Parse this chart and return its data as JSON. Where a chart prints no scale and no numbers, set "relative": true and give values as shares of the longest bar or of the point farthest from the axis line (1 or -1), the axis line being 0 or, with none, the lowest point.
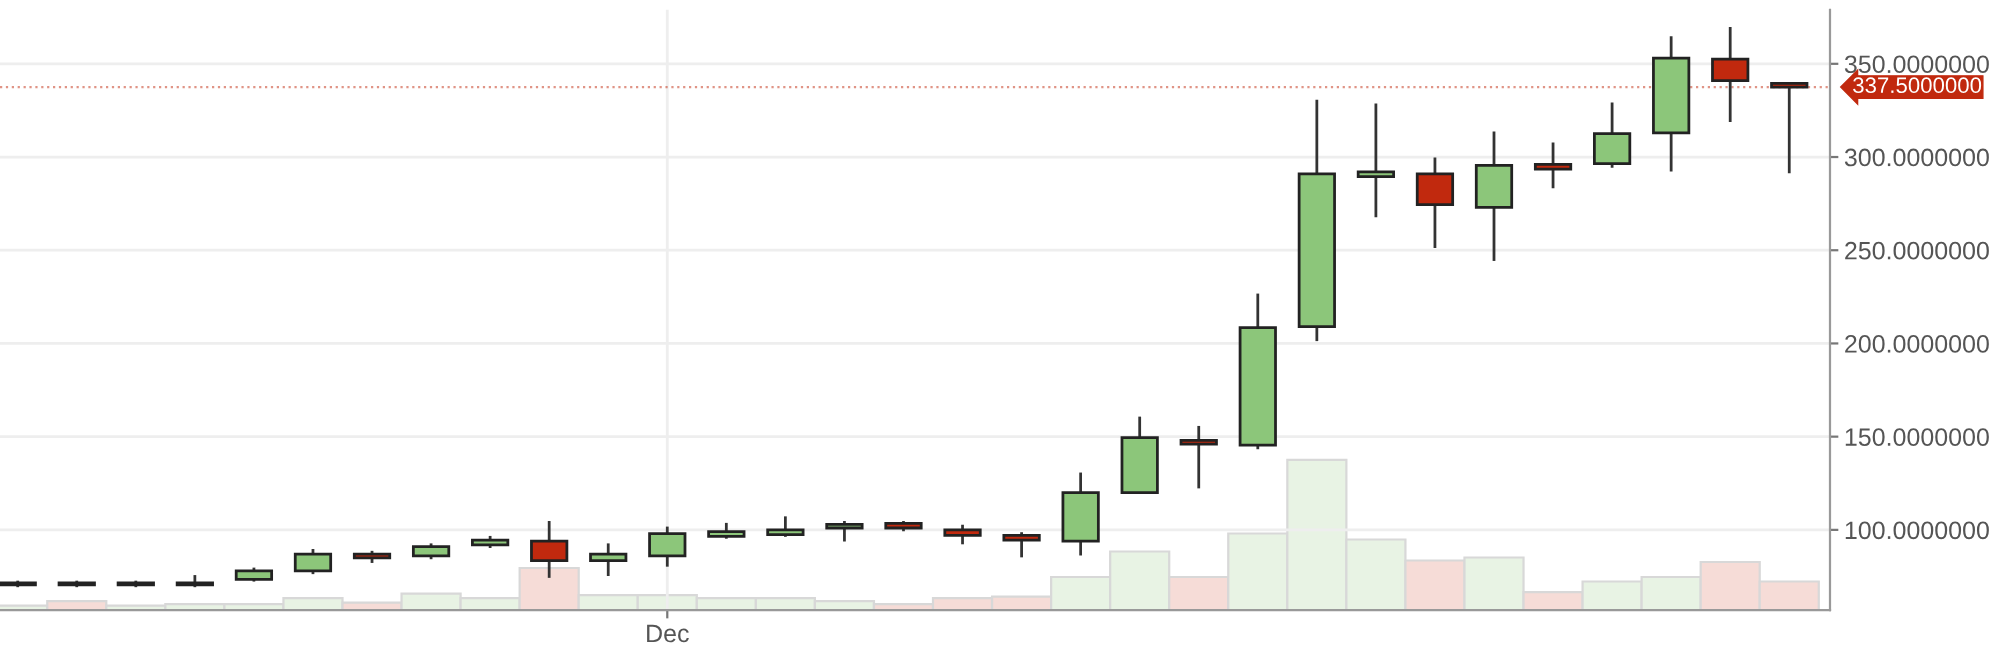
{
  "chart_data": [
    {
      "type": "candlestick",
      "categories": [
        null,
        null,
        null,
        null,
        null,
        null,
        null,
        null,
        null,
        null,
        null,
        "Dec",
        null,
        null,
        null,
        null,
        null,
        null,
        null,
        null,
        null,
        null,
        null,
        null,
        null,
        null,
        null,
        null,
        null,
        null,
        null
      ],
      "ohlc": [
        [
          70.5,
          72,
          70,
          71.5
        ],
        [
          71.5,
          72,
          70,
          70.5
        ],
        [
          70.5,
          72,
          70,
          71.5
        ],
        [
          70.5,
          75,
          70,
          71.5
        ],
        [
          73.5,
          79,
          73,
          78
        ],
        [
          78,
          89,
          77,
          87
        ],
        [
          87,
          88,
          83,
          85
        ],
        [
          86,
          92,
          85,
          91
        ],
        [
          92,
          96,
          91,
          94.5
        ],
        [
          94,
          104,
          75,
          83.5
        ],
        [
          83.5,
          92,
          76,
          87
        ],
        [
          86,
          101,
          81,
          98
        ],
        [
          96.5,
          103,
          96,
          99
        ],
        [
          97.5,
          106.5,
          97,
          100
        ],
        [
          101,
          104,
          94.5,
          103
        ],
        [
          103.5,
          104,
          100,
          101
        ],
        [
          100,
          102,
          93,
          97
        ],
        [
          97,
          98,
          86,
          94.5
        ],
        [
          94,
          130,
          87,
          120
        ],
        [
          120,
          160,
          120,
          149.5
        ],
        [
          148,
          155,
          123,
          146
        ],
        [
          145.5,
          226,
          144,
          208.5
        ],
        [
          209,
          330,
          202,
          291
        ],
        [
          289.5,
          328,
          268.5,
          292
        ],
        [
          291,
          299,
          252,
          274.5
        ],
        [
          273,
          313,
          245,
          295.5
        ],
        [
          296,
          307,
          284,
          293.5
        ],
        [
          296.5,
          328.5,
          295,
          312.5
        ],
        [
          313,
          364,
          293,
          353
        ],
        [
          352.5,
          369,
          319.5,
          341
        ],
        [
          339.5,
          339.5,
          292,
          337.5
        ]
      ],
      "colors": [
        "#8cc67a",
        "#c1290e",
        "#8cc67a",
        "#8cc67a",
        "#8cc67a",
        "#8cc67a",
        "#c1290e",
        "#8cc67a",
        "#8cc67a",
        "#c1290e",
        "#8cc67a",
        "#8cc67a",
        "#8cc67a",
        "#8cc67a",
        "#8cc67a",
        "#c1290e",
        "#c1290e",
        "#c1290e",
        "#8cc67a",
        "#8cc67a",
        "#c1290e",
        "#8cc67a",
        "#8cc67a",
        "#8cc67a",
        "#c1290e",
        "#8cc67a",
        "#c1290e",
        "#8cc67a",
        "#8cc67a",
        "#c1290e",
        "#c1290e"
      ],
      "ylim": [
        57,
        379
      ],
      "yticks": [
        {
          "value": 100,
          "label": "100.0000000"
        },
        {
          "value": 150,
          "label": "150.0000000"
        },
        {
          "value": 200,
          "label": "200.0000000"
        },
        {
          "value": 250,
          "label": "250.0000000"
        },
        {
          "value": 300,
          "label": "300.0000000"
        },
        {
          "value": 350,
          "label": "350.0000000"
        }
      ],
      "grid": true,
      "ref_lines": [
        {
          "axis": "y",
          "value": 337.5,
          "label": "337.5000000",
          "color": "#c1290e"
        }
      ]
    },
    {
      "type": "bar",
      "relative": true,
      "tick_labels": false,
      "categories": [
        null,
        null,
        null,
        null,
        null,
        null,
        null,
        null,
        null,
        null,
        null,
        null,
        null,
        null,
        null,
        null,
        null,
        null,
        null,
        null,
        null,
        null,
        null,
        null,
        null,
        null,
        null,
        null,
        null,
        null,
        null
      ],
      "values": [
        0.03,
        0.06,
        0.03,
        0.04,
        0.04,
        0.08,
        0.05,
        0.11,
        0.08,
        0.28,
        0.1,
        0.1,
        0.08,
        0.08,
        0.06,
        0.04,
        0.08,
        0.09,
        0.22,
        0.39,
        0.22,
        0.51,
        1,
        0.47,
        0.33,
        0.35,
        0.12,
        0.19,
        0.22,
        0.32,
        0.19
      ],
      "colors": [
        "#e8f3e4",
        "#f6dcd7",
        "#e8f3e4",
        "#e8f3e4",
        "#e8f3e4",
        "#e8f3e4",
        "#f6dcd7",
        "#e8f3e4",
        "#e8f3e4",
        "#f6dcd7",
        "#e8f3e4",
        "#e8f3e4",
        "#e8f3e4",
        "#e8f3e4",
        "#e8f3e4",
        "#f6dcd7",
        "#f6dcd7",
        "#f6dcd7",
        "#e8f3e4",
        "#e8f3e4",
        "#f6dcd7",
        "#e8f3e4",
        "#e8f3e4",
        "#e8f3e4",
        "#f6dcd7",
        "#e8f3e4",
        "#f6dcd7",
        "#e8f3e4",
        "#e8f3e4",
        "#f6dcd7",
        "#f6dcd7"
      ]
    }
  ]
}
